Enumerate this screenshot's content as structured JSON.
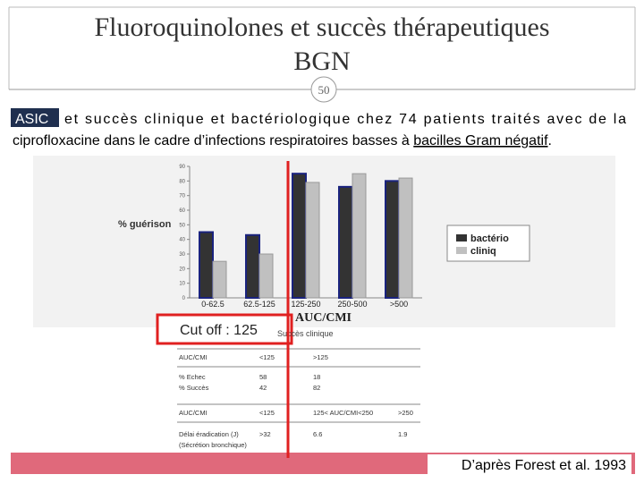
{
  "title": "Fluoroquinolones et succès thérapeutiques BGN",
  "slide_number": "50",
  "body": {
    "highlight": "ASIC",
    "line1": "et succès clinique et bactériologique chez 74 patients traités avec de la",
    "line2": "ciprofloxacine dans le cadre d’infections respiratoires basses à ",
    "line2_underlined": "bacilles Gram négatif",
    "line2_end": "."
  },
  "chart_data": {
    "type": "bar",
    "y_label": "% guérison",
    "categories": [
      "0-62.5",
      "62.5-125",
      "125-250",
      "250-500",
      ">500"
    ],
    "series": [
      {
        "name": "bactério",
        "color": "#333333",
        "values": [
          45,
          43,
          85,
          76,
          80
        ]
      },
      {
        "name": "cliniq",
        "color": "#c0c0c0",
        "values": [
          25,
          30,
          79,
          85,
          82
        ]
      }
    ],
    "ylim": [
      0,
      90
    ],
    "yticks": [
      0,
      10,
      20,
      30,
      40,
      50,
      60,
      70,
      80,
      90
    ],
    "legend": "right"
  },
  "cut_off": "Cut off : 125",
  "table": {
    "title": "AUC/CMI",
    "subtitle": "Succès clinique",
    "rows1": [
      [
        "AUC/CMI",
        "<125",
        ">125"
      ],
      [
        "% Echec",
        "58",
        "18"
      ],
      [
        "% Succès",
        "42",
        "82"
      ]
    ],
    "rows2": [
      [
        "AUC/CMI",
        "<125",
        "125< AUC/CMI<250",
        ">250"
      ],
      [
        "Délai éradication (J)",
        ">32",
        "6.6",
        "1.9"
      ]
    ],
    "note": "(Sécrétion bronchique)"
  },
  "footer": "D’après Forest et al. 1993"
}
